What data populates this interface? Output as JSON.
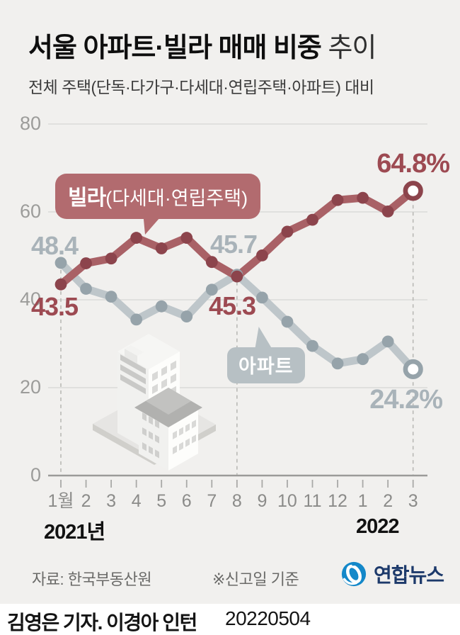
{
  "title": {
    "main": "서울 아파트·빌라 매매 비중",
    "suffix": " 추이"
  },
  "subtitle": "전체 주택(단독·다가구·다세대·연립주택·아파트) 대비",
  "chart_data": {
    "type": "line",
    "x_labels": [
      "1월",
      "2",
      "3",
      "4",
      "5",
      "6",
      "7",
      "8",
      "9",
      "10",
      "11",
      "12",
      "1",
      "2",
      "3"
    ],
    "year_labels": [
      {
        "text": "2021년",
        "x_index": 0
      },
      {
        "text": "2022",
        "x_index": 12
      }
    ],
    "ylim": [
      0,
      80
    ],
    "yticks": [
      0,
      20,
      40,
      60,
      80
    ],
    "grid": true,
    "dashed_month_indices": [
      0,
      7,
      14
    ],
    "series": [
      {
        "name": "빌라(다세대·연립주택)",
        "color_line": "#a96166",
        "color_dot": "#8c444c",
        "values": [
          43.5,
          48.3,
          49.4,
          54.1,
          51.7,
          54.1,
          48.6,
          45.3,
          50.1,
          55.5,
          58.2,
          62.7,
          63.2,
          60.1,
          64.8
        ]
      },
      {
        "name": "아파트",
        "color_line": "#bec6ca",
        "color_dot": "#96a3aa",
        "values": [
          48.4,
          42.5,
          40.7,
          35.5,
          38.5,
          36.2,
          42.3,
          45.7,
          40.5,
          35.0,
          29.5,
          25.5,
          26.5,
          30.5,
          24.2
        ]
      }
    ],
    "annotations": [
      {
        "series": "아파트",
        "x_index": 0,
        "text": "48.4"
      },
      {
        "series": "빌라",
        "x_index": 0,
        "text": "43.5"
      },
      {
        "series": "아파트",
        "x_index": 7,
        "text": "45.7"
      },
      {
        "series": "빌라",
        "x_index": 7,
        "text": "45.3"
      },
      {
        "series": "빌라",
        "x_index": 14,
        "text": "64.8%"
      },
      {
        "series": "아파트",
        "x_index": 14,
        "text": "24.2%"
      }
    ]
  },
  "callouts": {
    "villa_bold": "빌라",
    "villa_rest": "(다세대·연립주택)",
    "apartment": "아파트"
  },
  "footer": {
    "source": "자료: 한국부동산원",
    "note": "※신고일 기준",
    "logo_text": "연합뉴스",
    "logo_blue": "#1488c9",
    "logo_navy": "#1d3a6b"
  },
  "credit": {
    "byline": "김영은 기자. 이경아 인턴",
    "date": "20220504"
  }
}
